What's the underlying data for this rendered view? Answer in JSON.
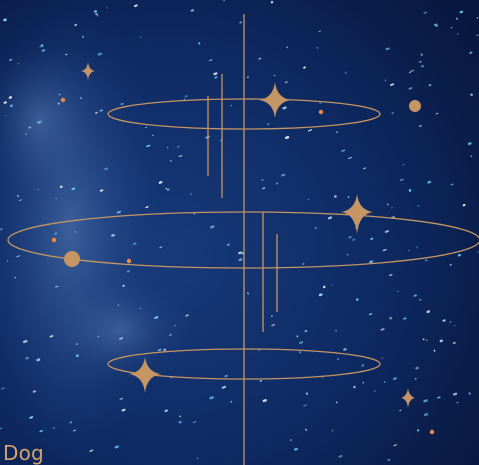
{
  "caption": "Dog",
  "colors": {
    "sky_deep": "#08173f",
    "sky_mid": "#0e2a63",
    "nebula": "#3f6aa8",
    "gold": "#c59563",
    "star_white": "#eaf2ff",
    "star_cyan": "#6fd1ff",
    "star_orange": "#f08a45"
  },
  "icons": [
    "four-point-sparkle-icon",
    "orbit-ring-icon",
    "planet-dot-icon"
  ]
}
